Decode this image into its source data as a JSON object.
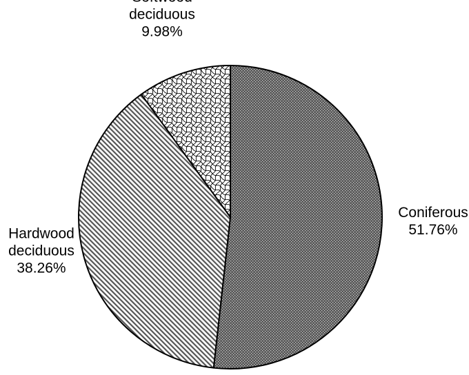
{
  "chart_data": {
    "type": "pie",
    "title": "",
    "slices": [
      {
        "name_lines": [
          "Coniferous"
        ],
        "value": 51.76,
        "value_label": "51.76%",
        "pattern": "dense-dots"
      },
      {
        "name_lines": [
          "Hardwood",
          "deciduous"
        ],
        "value": 38.26,
        "value_label": "38.26%",
        "pattern": "diagonal-hatch"
      },
      {
        "name_lines": [
          "Softwood",
          "deciduous"
        ],
        "value": 9.98,
        "value_label": "9.98%",
        "pattern": "wave-lattice"
      }
    ],
    "start_angle_deg": 0,
    "direction": "clockwise-from-top",
    "colors": {
      "outline": "#000000",
      "coniferous_fill": "#4a4a4a",
      "hardwood_fill": "#bdbdbd",
      "softwood_fill": "#ffffff"
    }
  }
}
